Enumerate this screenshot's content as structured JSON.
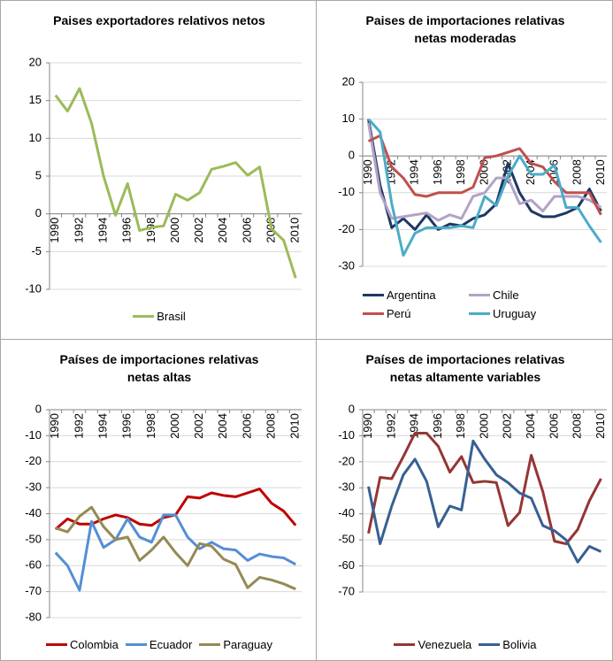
{
  "chart_data": [
    {
      "type": "line",
      "title": "Paises exportadores relativos netos",
      "categories": [
        "1990",
        null,
        "1992",
        null,
        "1994",
        null,
        "1996",
        null,
        "1998",
        null,
        "2000",
        null,
        "2002",
        null,
        "2004",
        null,
        "2006",
        null,
        "2008",
        null,
        "2010"
      ],
      "series": [
        {
          "name": "Brasil",
          "color": "#9bbb59",
          "values": [
            15.7,
            13.6,
            16.6,
            12,
            5,
            -0.2,
            4,
            -2.2,
            -1.8,
            -1.6,
            2.6,
            1.8,
            2.8,
            5.9,
            6.3,
            6.8,
            5.1,
            6.2,
            -2,
            -3.5,
            -8.5
          ]
        }
      ],
      "ylim": [
        -10,
        20
      ],
      "yticks": [
        -10,
        -5,
        0,
        5,
        10,
        15,
        20
      ],
      "grid": true,
      "legend": "bottom"
    },
    {
      "type": "line",
      "title": "Paises de importaciones relativas netas moderadas",
      "categories": [
        "1990",
        null,
        "1992",
        null,
        "1994",
        null,
        "1996",
        null,
        "1998",
        null,
        "2000",
        null,
        "2002",
        null,
        "2004",
        null,
        "2006",
        null,
        "2008",
        null,
        "2010"
      ],
      "series": [
        {
          "name": "Argentina",
          "color": "#1f3864",
          "values": [
            10,
            -8,
            -19.5,
            -17,
            -20,
            -16,
            -20,
            -18.5,
            -19,
            -17,
            -16,
            -13,
            -2,
            -10,
            -15,
            -16.5,
            -16.5,
            -15.5,
            -14,
            -9,
            -15
          ]
        },
        {
          "name": "Chile",
          "color": "#b3a2c7",
          "values": [
            9,
            -10,
            -17,
            -16.5,
            -16,
            -15.5,
            -17.5,
            -16,
            -17,
            -11,
            -10,
            -6,
            -6,
            -13,
            -12,
            -15,
            -11,
            -11,
            -11,
            -12,
            -14
          ]
        },
        {
          "name": "Perú",
          "color": "#c0504d",
          "values": [
            4,
            5.5,
            -3,
            -6,
            -10.5,
            -11,
            -10,
            -10,
            -10,
            -8.5,
            -0.5,
            0,
            1,
            2,
            -2,
            -3,
            -7,
            -10,
            -10,
            -10,
            -16
          ]
        },
        {
          "name": "Uruguay",
          "color": "#4bacc6",
          "values": [
            10,
            6.5,
            -13,
            -27,
            -21,
            -19.5,
            -19.5,
            -19.5,
            -19,
            -19.5,
            -11,
            -13.5,
            -5.5,
            0,
            -5,
            -5,
            -2.5,
            -14,
            -14,
            -19,
            -23.5
          ]
        }
      ],
      "ylim": [
        -30,
        20
      ],
      "yticks": [
        -30,
        -20,
        -10,
        0,
        10,
        20
      ],
      "grid": true,
      "legend": "bottom"
    },
    {
      "type": "line",
      "title": "Países de importaciones relativas netas altas",
      "categories": [
        "1990",
        null,
        "1992",
        null,
        "1994",
        null,
        "1996",
        null,
        "1998",
        null,
        "2000",
        null,
        "2002",
        null,
        "2004",
        null,
        "2006",
        null,
        "2008",
        null,
        "2010"
      ],
      "series": [
        {
          "name": "Colombia",
          "color": "#c00000",
          "values": [
            -46,
            -42,
            -44,
            -44,
            -42,
            -40.5,
            -41.5,
            -44,
            -44.5,
            -41.5,
            -40.5,
            -33.5,
            -34,
            -32,
            -33,
            -33.5,
            -32,
            -30.5,
            -36,
            -39,
            -44.5
          ]
        },
        {
          "name": "Ecuador",
          "color": "#558ed5",
          "values": [
            -55,
            -60,
            -69.5,
            -43,
            -53,
            -50,
            -42,
            -49,
            -51,
            -40.5,
            -40.5,
            -49,
            -53.5,
            -51,
            -53.5,
            -54,
            -58,
            -55.5,
            -56.5,
            -57,
            -59.5
          ]
        },
        {
          "name": "Paraguay",
          "color": "#948a54",
          "values": [
            -45.5,
            -47,
            -41,
            -37.5,
            -45,
            -50,
            -49,
            -58,
            -54,
            -49,
            -55,
            -60,
            -51.5,
            -52.5,
            -57.5,
            -59.5,
            -68.5,
            -64.5,
            -65.5,
            -67,
            -69
          ]
        }
      ],
      "ylim": [
        -80,
        0
      ],
      "yticks": [
        -80,
        -70,
        -60,
        -50,
        -40,
        -30,
        -20,
        -10,
        0
      ],
      "grid": true,
      "legend": "bottom"
    },
    {
      "type": "line",
      "title": "Países de importaciones relativas netas altamente variables",
      "categories": [
        "1990",
        null,
        "1992",
        null,
        "1994",
        null,
        "1996",
        null,
        "1998",
        null,
        "2000",
        null,
        "2002",
        null,
        "2004",
        null,
        "2006",
        null,
        "2008",
        null,
        "2010"
      ],
      "series": [
        {
          "name": "Venezuela",
          "color": "#943634",
          "values": [
            -47.5,
            -26,
            -26.5,
            -18,
            -9,
            -9,
            -14,
            -24,
            -18,
            -28,
            -27.5,
            -28,
            -44.5,
            -39.5,
            -17.5,
            -31.5,
            -50.5,
            -51.5,
            -46,
            -35,
            -26.5
          ]
        },
        {
          "name": "Bolivia",
          "color": "#376092",
          "values": [
            -29.5,
            -51.5,
            -37,
            -25,
            -19,
            -27.5,
            -45,
            -37,
            -38.5,
            -12,
            -19,
            -25,
            -28,
            -32,
            -34,
            -44.5,
            -46.5,
            -50,
            -58.5,
            -52.5,
            -54.5
          ]
        }
      ],
      "ylim": [
        -70,
        0
      ],
      "yticks": [
        -70,
        -60,
        -50,
        -40,
        -30,
        -20,
        -10,
        0
      ],
      "grid": true,
      "legend": "bottom"
    }
  ]
}
